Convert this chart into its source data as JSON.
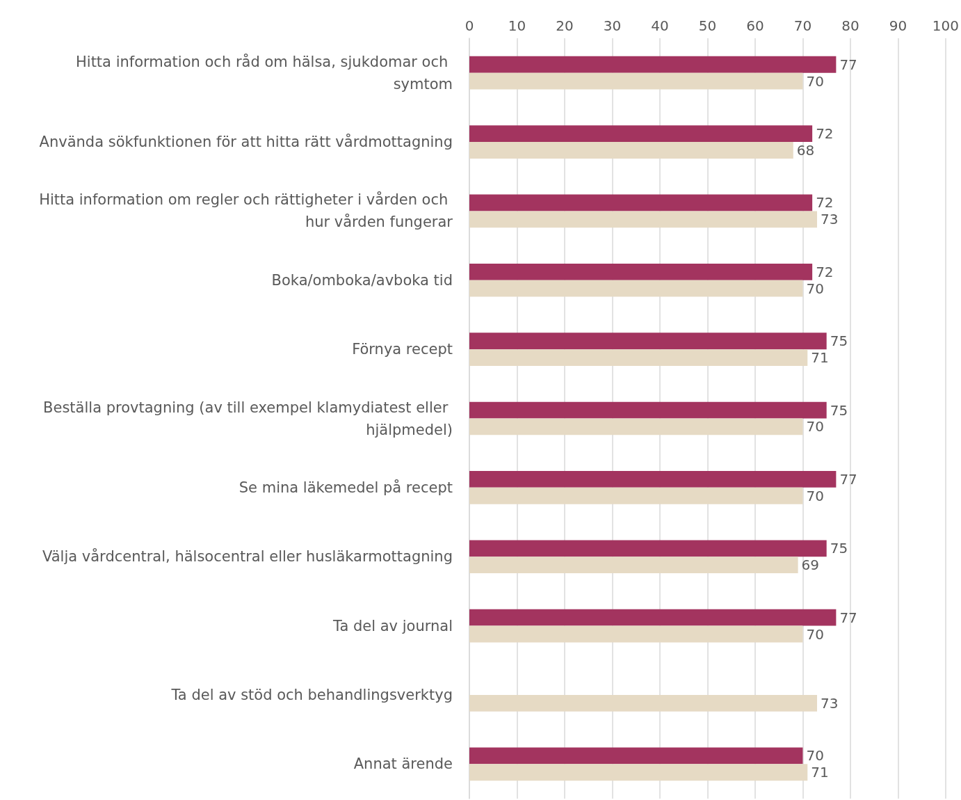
{
  "chart_data": {
    "type": "bar",
    "orientation": "horizontal",
    "categories": [
      "Hitta information och råd om hälsa, sjukdomar och symtom",
      "Använda sökfunktionen för att hitta rätt vårdmottagning",
      "Hitta information om regler och rättigheter i vården och hur vården fungerar",
      "Boka/omboka/avboka tid",
      "Förnya recept",
      "Beställa provtagning (av till exempel klamydiatest eller hjälpmedel)",
      "Se mina läkemedel på recept",
      "Välja vårdcentral, hälsocentral eller husläkarmottagning",
      "Ta del av journal",
      "Ta del av stöd och behandlingsverktyg",
      "Annat ärende"
    ],
    "series": [
      {
        "color": "#a3345f",
        "values": [
          77,
          72,
          72,
          72,
          75,
          75,
          77,
          75,
          77,
          null,
          70
        ]
      },
      {
        "color": "#e6dac4",
        "values": [
          70,
          68,
          73,
          70,
          71,
          70,
          70,
          69,
          70,
          73,
          71
        ]
      }
    ],
    "xlim": [
      0,
      100
    ],
    "xticks": [
      0,
      10,
      20,
      30,
      40,
      50,
      60,
      70,
      80,
      90,
      100
    ],
    "grid": "x",
    "data_labels": true
  }
}
